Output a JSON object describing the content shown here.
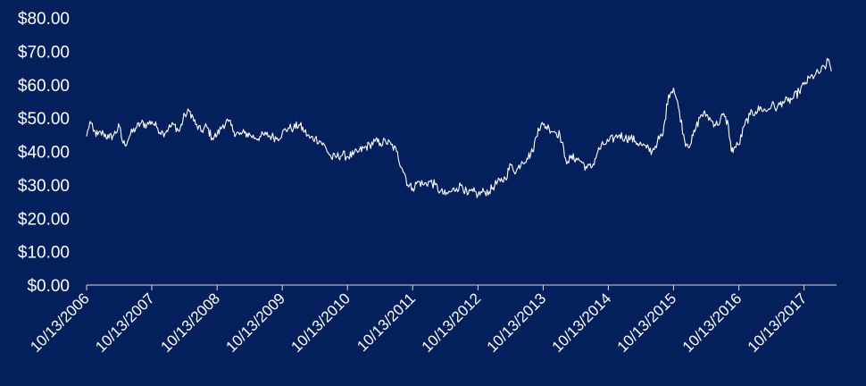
{
  "chart_data": {
    "type": "line",
    "title": "",
    "xlabel": "",
    "ylabel": "",
    "grid": false,
    "legend": "none",
    "colors": {
      "background": "#03205c",
      "line": "#ffffff",
      "axis": "#d9d9d9",
      "text": "#ffffff"
    },
    "ylim": [
      0,
      80
    ],
    "y_ticks": [
      0,
      10,
      20,
      30,
      40,
      50,
      60,
      70,
      80
    ],
    "y_tick_labels": [
      "$0.00",
      "$10.00",
      "$20.00",
      "$30.00",
      "$40.00",
      "$50.00",
      "$60.00",
      "$70.00",
      "$80.00"
    ],
    "xlim": [
      "2006-10-13",
      "2018-04-13"
    ],
    "x_ticks": [
      "2006-10-13",
      "2007-10-13",
      "2008-10-13",
      "2009-10-13",
      "2010-10-13",
      "2011-10-13",
      "2012-10-13",
      "2013-10-13",
      "2014-10-13",
      "2015-10-13",
      "2016-10-13",
      "2017-10-13"
    ],
    "x_tick_labels": [
      "10/13/2006",
      "10/13/2007",
      "10/13/2008",
      "10/13/2009",
      "10/13/2010",
      "10/13/2011",
      "10/13/2012",
      "10/13/2013",
      "10/13/2014",
      "10/13/2015",
      "10/13/2016",
      "10/13/2017"
    ],
    "series": [
      {
        "x": [
          "2006-10-13",
          "2006-11-01",
          "2006-11-20",
          "2006-12-15",
          "2007-01-15",
          "2007-02-15",
          "2007-03-15",
          "2007-04-15",
          "2007-05-01",
          "2007-05-15",
          "2007-06-15",
          "2007-07-15",
          "2007-08-15",
          "2007-09-15",
          "2007-10-13",
          "2007-11-15",
          "2007-12-15",
          "2008-01-15",
          "2008-02-15",
          "2008-03-15",
          "2008-04-15",
          "2008-05-15",
          "2008-06-15",
          "2008-07-15",
          "2008-08-15",
          "2008-09-15",
          "2008-10-13",
          "2008-11-15",
          "2008-12-15",
          "2009-01-15",
          "2009-02-15",
          "2009-03-15",
          "2009-04-15",
          "2009-05-15",
          "2009-06-15",
          "2009-07-15",
          "2009-08-15",
          "2009-09-15",
          "2009-10-13",
          "2009-11-15",
          "2009-12-15",
          "2010-01-15",
          "2010-02-15",
          "2010-03-15",
          "2010-04-15",
          "2010-05-15",
          "2010-06-15",
          "2010-07-15",
          "2010-08-15",
          "2010-09-15",
          "2010-10-13",
          "2010-11-15",
          "2010-12-15",
          "2011-01-15",
          "2011-02-15",
          "2011-03-15",
          "2011-04-15",
          "2011-05-15",
          "2011-06-15",
          "2011-07-15",
          "2011-08-15",
          "2011-09-01",
          "2011-09-15",
          "2011-10-13",
          "2011-11-15",
          "2011-12-15",
          "2012-01-15",
          "2012-02-15",
          "2012-03-15",
          "2012-04-15",
          "2012-05-15",
          "2012-06-15",
          "2012-07-15",
          "2012-08-15",
          "2012-09-15",
          "2012-10-13",
          "2012-11-15",
          "2012-12-15",
          "2013-01-15",
          "2013-02-15",
          "2013-03-15",
          "2013-04-15",
          "2013-05-15",
          "2013-06-15",
          "2013-07-15",
          "2013-08-15",
          "2013-09-15",
          "2013-10-13",
          "2013-11-15",
          "2013-12-15",
          "2014-01-15",
          "2014-02-15",
          "2014-02-28",
          "2014-03-15",
          "2014-04-15",
          "2014-05-15",
          "2014-06-15",
          "2014-07-15",
          "2014-08-15",
          "2014-09-15",
          "2014-10-13",
          "2014-11-15",
          "2014-12-15",
          "2015-01-15",
          "2015-02-15",
          "2015-03-15",
          "2015-04-15",
          "2015-05-15",
          "2015-06-15",
          "2015-07-15",
          "2015-08-15",
          "2015-09-15",
          "2015-10-13",
          "2015-11-15",
          "2015-12-15",
          "2016-01-15",
          "2016-02-15",
          "2016-03-15",
          "2016-04-15",
          "2016-05-15",
          "2016-06-15",
          "2016-07-15",
          "2016-08-15",
          "2016-09-01",
          "2016-09-15",
          "2016-10-13",
          "2016-11-15",
          "2016-12-15",
          "2017-01-15",
          "2017-02-15",
          "2017-03-15",
          "2017-04-15",
          "2017-05-15",
          "2017-06-15",
          "2017-07-15",
          "2017-08-15",
          "2017-09-15",
          "2017-10-13",
          "2017-11-15",
          "2017-12-15",
          "2018-01-15",
          "2018-02-15",
          "2018-03-01",
          "2018-03-15"
        ],
        "y": [
          44.5,
          49,
          46,
          45,
          45.5,
          44,
          45,
          47.5,
          43,
          42,
          45,
          47,
          48.5,
          48,
          49,
          47,
          45.5,
          47,
          48,
          46,
          51,
          52,
          48,
          46,
          47.5,
          44,
          45,
          48,
          49,
          46,
          45,
          45.5,
          45,
          44,
          44.5,
          45,
          44.5,
          44,
          45.5,
          47,
          47,
          48,
          46,
          44,
          44,
          43,
          41,
          38,
          38.5,
          39,
          38.5,
          39,
          40,
          41,
          42,
          43,
          42.5,
          43,
          42,
          40,
          35,
          33,
          30,
          29,
          31,
          30,
          31,
          30,
          28,
          27,
          28,
          29,
          30,
          27,
          28,
          27,
          28,
          28,
          30,
          31,
          32,
          36,
          34,
          37,
          38,
          40,
          47,
          48,
          47,
          46,
          45,
          38,
          37,
          38,
          38,
          37,
          35,
          35.5,
          40,
          42,
          43,
          44,
          45,
          44,
          44,
          43,
          42,
          41,
          40,
          43,
          45,
          57,
          59,
          52,
          43,
          42,
          47,
          51,
          51,
          49,
          48,
          51,
          48,
          40,
          41,
          42,
          48,
          51,
          52,
          53,
          52,
          54,
          53,
          55,
          55,
          56,
          58,
          60,
          62,
          63,
          64,
          66,
          67.5,
          64
        ]
      }
    ]
  }
}
